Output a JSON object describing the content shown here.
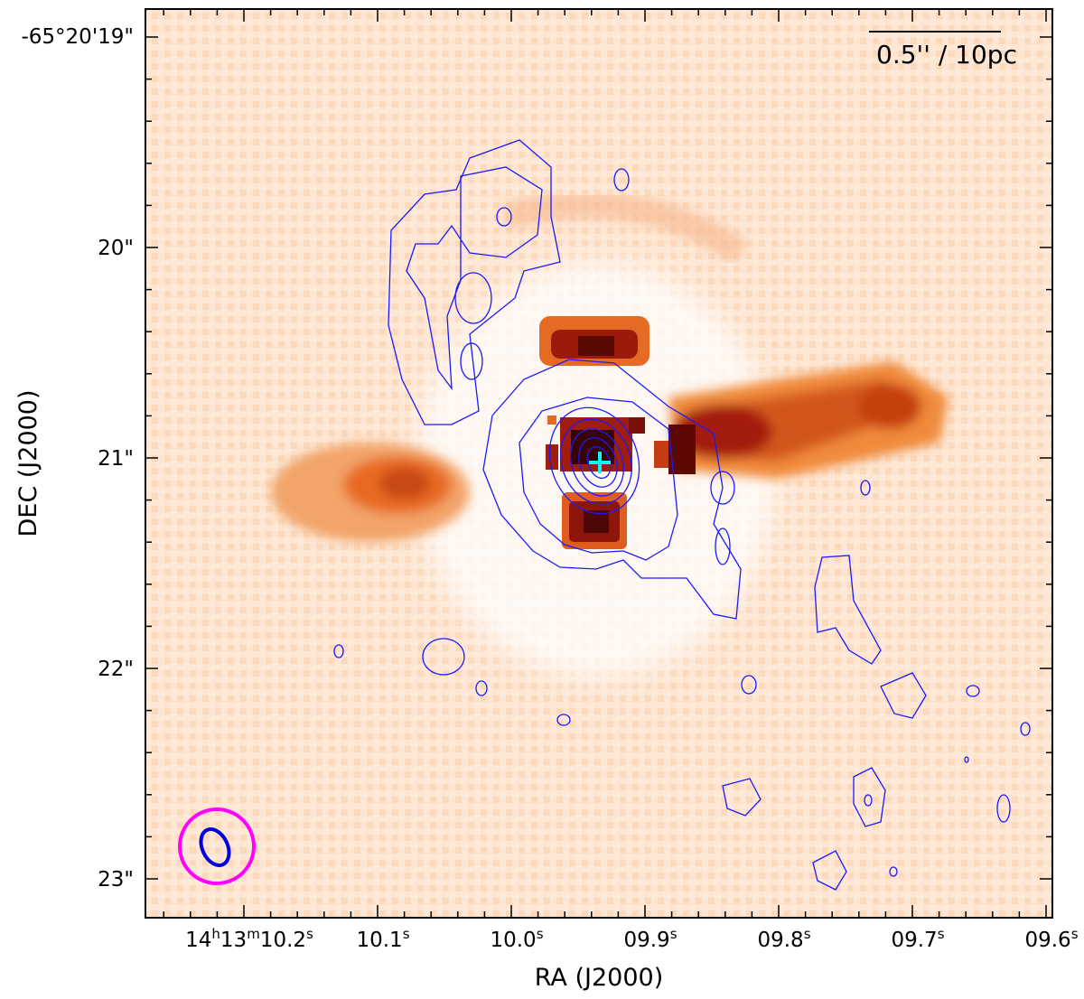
{
  "figure": {
    "x_axis_label": "RA (J2000)",
    "y_axis_label": "DEC (J2000)",
    "scale_bar_label": "0.5'' / 10pc",
    "x_ticks": [
      {
        "main": "14",
        "parts": [
          {
            "t": "14",
            "sup": false
          },
          {
            "t": "h",
            "sup": true
          },
          {
            "t": "13",
            "sup": false
          },
          {
            "t": "m",
            "sup": true
          },
          {
            "t": "10.2",
            "sup": false
          },
          {
            "t": "s",
            "sup": true
          }
        ]
      },
      {
        "parts": [
          {
            "t": "10.1",
            "sup": false
          },
          {
            "t": "s",
            "sup": true
          }
        ]
      },
      {
        "parts": [
          {
            "t": "10.0",
            "sup": false
          },
          {
            "t": "s",
            "sup": true
          }
        ]
      },
      {
        "parts": [
          {
            "t": "09.9",
            "sup": false
          },
          {
            "t": "s",
            "sup": true
          }
        ]
      },
      {
        "parts": [
          {
            "t": "09.8",
            "sup": false
          },
          {
            "t": "s",
            "sup": true
          }
        ]
      },
      {
        "parts": [
          {
            "t": "09.7",
            "sup": false
          },
          {
            "t": "s",
            "sup": true
          }
        ]
      },
      {
        "parts": [
          {
            "t": "09.6",
            "sup": false
          },
          {
            "t": "s",
            "sup": true
          }
        ]
      }
    ],
    "y_ticks": [
      "-65°20'19\"",
      "20\"",
      "21\"",
      "22\"",
      "23\""
    ],
    "colors": {
      "image_light": "#fde3cc",
      "image_mid": "#f08a3a",
      "image_dark": "#8b0e0a",
      "contours": "#1a1aff",
      "beam_circle": "#ff00ff",
      "beam_ellipse": "#0000dd",
      "nucleus_marker": "#00ffff"
    }
  }
}
